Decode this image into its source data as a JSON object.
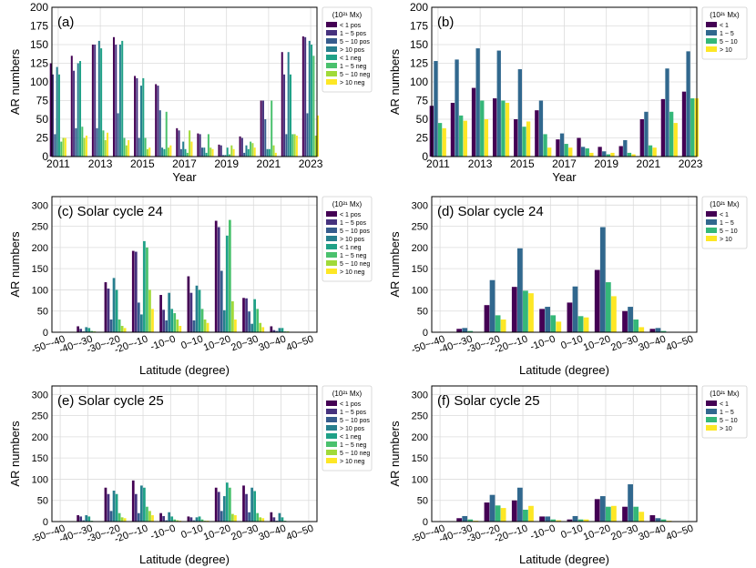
{
  "chart_data": [
    {
      "type": "bar",
      "panel_label": "(a)",
      "xlabel": "Year",
      "ylabel": "AR numbers",
      "ylim": [
        0,
        200
      ],
      "yticks": [
        0,
        25,
        50,
        75,
        100,
        125,
        150,
        175,
        200
      ],
      "categories": [
        "2011",
        "2012",
        "2013",
        "2014",
        "2015",
        "2016",
        "2017",
        "2018",
        "2019",
        "2020",
        "2021",
        "2022",
        "2023"
      ],
      "xtick_labels": [
        "2011",
        "2013",
        "2015",
        "2017",
        "2019",
        "2021",
        "2023"
      ],
      "legend_title": "(10²¹ Mx)",
      "series": [
        {
          "name": "< 1 pos",
          "color": "#440154",
          "values": [
            125,
            135,
            150,
            160,
            108,
            97,
            38,
            31,
            16,
            27,
            75,
            140,
            161
          ]
        },
        {
          "name": "1 ~ 5 pos",
          "color": "#46327e",
          "values": [
            110,
            115,
            150,
            150,
            105,
            95,
            35,
            30,
            15,
            25,
            75,
            110,
            160
          ]
        },
        {
          "name": "5 ~ 10 pos",
          "color": "#365c8d",
          "values": [
            30,
            38,
            38,
            58,
            25,
            62,
            10,
            12,
            2,
            5,
            50,
            30,
            58
          ]
        },
        {
          "name": "> 10 pos",
          "color": "#277f8e",
          "values": [
            120,
            125,
            155,
            150,
            95,
            12,
            20,
            12,
            2,
            15,
            10,
            140,
            155
          ]
        },
        {
          "name": "< 1 neg",
          "color": "#1fa187",
          "values": [
            110,
            128,
            145,
            155,
            105,
            10,
            10,
            5,
            12,
            10,
            10,
            110,
            150
          ]
        },
        {
          "name": "1 ~ 5 neg",
          "color": "#4ac16d",
          "values": [
            20,
            40,
            35,
            25,
            25,
            60,
            5,
            30,
            3,
            20,
            75,
            30,
            135
          ]
        },
        {
          "name": "5 ~ 10 neg",
          "color": "#a0da39",
          "values": [
            25,
            25,
            22,
            15,
            10,
            12,
            35,
            12,
            15,
            18,
            15,
            30,
            28
          ]
        },
        {
          "name": "> 10 neg",
          "color": "#fde725",
          "values": [
            25,
            28,
            32,
            22,
            12,
            15,
            20,
            10,
            10,
            12,
            5,
            28,
            55
          ]
        }
      ]
    },
    {
      "type": "bar",
      "panel_label": "(b)",
      "xlabel": "Year",
      "ylabel": "AR numbers",
      "ylim": [
        0,
        200
      ],
      "yticks": [
        0,
        25,
        50,
        75,
        100,
        125,
        150,
        175,
        200
      ],
      "categories": [
        "2011",
        "2012",
        "2013",
        "2014",
        "2015",
        "2016",
        "2017",
        "2018",
        "2019",
        "2020",
        "2021",
        "2022",
        "2023"
      ],
      "xtick_labels": [
        "2011",
        "2013",
        "2015",
        "2017",
        "2019",
        "2021",
        "2023"
      ],
      "legend_title": "(10²¹ Mx)",
      "series": [
        {
          "name": "< 1",
          "color": "#440154",
          "values": [
            68,
            72,
            92,
            78,
            50,
            62,
            23,
            25,
            13,
            14,
            50,
            77,
            87
          ]
        },
        {
          "name": "1 ~ 5",
          "color": "#31688e",
          "values": [
            128,
            130,
            145,
            142,
            117,
            75,
            31,
            13,
            7,
            22,
            60,
            118,
            141
          ]
        },
        {
          "name": "5 ~ 10",
          "color": "#35b779",
          "values": [
            45,
            55,
            75,
            75,
            40,
            30,
            17,
            11,
            3,
            5,
            15,
            60,
            78
          ]
        },
        {
          "name": "> 10",
          "color": "#fde725",
          "values": [
            38,
            48,
            50,
            72,
            47,
            12,
            12,
            5,
            5,
            3,
            12,
            45,
            78
          ]
        }
      ]
    },
    {
      "type": "bar",
      "panel_label": "(c) Solar cycle 24",
      "xlabel": "Latitude (degree)",
      "ylabel": "AR numbers",
      "ylim": [
        0,
        320
      ],
      "yticks": [
        0,
        50,
        100,
        150,
        200,
        250,
        300
      ],
      "categories": [
        "-50~-40",
        "-40~-30",
        "-30~-20",
        "-20~-10",
        "-10~0",
        "0~10",
        "10~20",
        "20~30",
        "30~40",
        "40~50"
      ],
      "xtick_labels": [
        "-50~-40",
        "-40~-30",
        "-30~-20",
        "-20~-10",
        "-10~0",
        "0~10",
        "10~20",
        "20~30",
        "30~40",
        "40~50"
      ],
      "legend_title": "(10²¹ Mx)",
      "series": [
        {
          "name": "< 1 pos",
          "color": "#440154",
          "values": [
            0,
            14,
            118,
            192,
            88,
            132,
            263,
            81,
            14,
            0
          ]
        },
        {
          "name": "1 ~ 5 pos",
          "color": "#46327e",
          "values": [
            0,
            8,
            103,
            190,
            53,
            93,
            248,
            80,
            5,
            0
          ]
        },
        {
          "name": "5 ~ 10 pos",
          "color": "#365c8d",
          "values": [
            0,
            2,
            30,
            70,
            28,
            28,
            145,
            49,
            3,
            0
          ]
        },
        {
          "name": "> 10 pos",
          "color": "#277f8e",
          "values": [
            0,
            12,
            128,
            42,
            93,
            110,
            52,
            20,
            10,
            0
          ]
        },
        {
          "name": "< 1 neg",
          "color": "#1fa187",
          "values": [
            0,
            10,
            100,
            215,
            55,
            100,
            228,
            78,
            10,
            0
          ]
        },
        {
          "name": "1 ~ 5 neg",
          "color": "#4ac16d",
          "values": [
            0,
            3,
            30,
            200,
            45,
            55,
            265,
            55,
            2,
            0
          ]
        },
        {
          "name": "5 ~ 10 neg",
          "color": "#a0da39",
          "values": [
            0,
            2,
            15,
            100,
            30,
            30,
            73,
            22,
            2,
            0
          ]
        },
        {
          "name": "> 10 neg",
          "color": "#fde725",
          "values": [
            0,
            1,
            10,
            55,
            15,
            22,
            30,
            12,
            1,
            0
          ]
        }
      ]
    },
    {
      "type": "bar",
      "panel_label": "(d) Solar cycle 24",
      "xlabel": "Latitude (degree)",
      "ylabel": "AR numbers",
      "ylim": [
        0,
        320
      ],
      "yticks": [
        0,
        50,
        100,
        150,
        200,
        250,
        300
      ],
      "categories": [
        "-50~-40",
        "-40~-30",
        "-30~-20",
        "-20~-10",
        "-10~0",
        "0~10",
        "10~20",
        "20~30",
        "30~40",
        "40~50"
      ],
      "xtick_labels": [
        "-50~-40",
        "-40~-30",
        "-30~-20",
        "-20~-10",
        "-10~0",
        "0~10",
        "10~20",
        "20~30",
        "30~40",
        "40~50"
      ],
      "legend_title": "(10²¹ Mx)",
      "series": [
        {
          "name": "< 1",
          "color": "#440154",
          "values": [
            0,
            8,
            64,
            107,
            55,
            70,
            147,
            50,
            8,
            0
          ]
        },
        {
          "name": "1 ~ 5",
          "color": "#31688e",
          "values": [
            0,
            10,
            123,
            198,
            60,
            108,
            248,
            60,
            10,
            0
          ]
        },
        {
          "name": "5 ~ 10",
          "color": "#35b779",
          "values": [
            0,
            3,
            40,
            98,
            40,
            38,
            118,
            30,
            3,
            0
          ]
        },
        {
          "name": "> 10",
          "color": "#fde725",
          "values": [
            0,
            1,
            30,
            92,
            25,
            35,
            85,
            12,
            1,
            0
          ]
        }
      ]
    },
    {
      "type": "bar",
      "panel_label": "(e) Solar cycle 25",
      "xlabel": "Latitude (degree)",
      "ylabel": "AR numbers",
      "ylim": [
        0,
        320
      ],
      "yticks": [
        0,
        50,
        100,
        150,
        200,
        250,
        300
      ],
      "categories": [
        "-50~-40",
        "-40~-30",
        "-30~-20",
        "-20~-10",
        "-10~0",
        "0~10",
        "10~20",
        "20~30",
        "30~40",
        "40~50"
      ],
      "xtick_labels": [
        "-50~-40",
        "-40~-30",
        "-30~-20",
        "-20~-10",
        "-10~0",
        "0~10",
        "10~20",
        "20~30",
        "30~40",
        "40~50"
      ],
      "legend_title": "(10²¹ Mx)",
      "series": [
        {
          "name": "< 1 pos",
          "color": "#440154",
          "values": [
            0,
            15,
            80,
            97,
            20,
            12,
            80,
            85,
            22,
            0
          ]
        },
        {
          "name": "1 ~ 5 pos",
          "color": "#46327e",
          "values": [
            0,
            12,
            65,
            65,
            13,
            10,
            70,
            65,
            10,
            0
          ]
        },
        {
          "name": "5 ~ 10 pos",
          "color": "#365c8d",
          "values": [
            0,
            3,
            25,
            20,
            3,
            3,
            25,
            22,
            2,
            0
          ]
        },
        {
          "name": "> 10 pos",
          "color": "#277f8e",
          "values": [
            0,
            15,
            73,
            85,
            22,
            10,
            60,
            80,
            20,
            0
          ]
        },
        {
          "name": "< 1 neg",
          "color": "#1fa187",
          "values": [
            0,
            12,
            65,
            80,
            12,
            12,
            92,
            72,
            10,
            0
          ]
        },
        {
          "name": "1 ~ 5 neg",
          "color": "#4ac16d",
          "values": [
            0,
            2,
            20,
            35,
            5,
            5,
            80,
            20,
            2,
            0
          ]
        },
        {
          "name": "5 ~ 10 neg",
          "color": "#a0da39",
          "values": [
            0,
            1,
            10,
            25,
            3,
            2,
            18,
            10,
            1,
            0
          ]
        },
        {
          "name": "> 10 neg",
          "color": "#fde725",
          "values": [
            0,
            1,
            8,
            15,
            2,
            2,
            15,
            8,
            1,
            0
          ]
        }
      ]
    },
    {
      "type": "bar",
      "panel_label": "(f) Solar cycle 25",
      "xlabel": "Latitude (degree)",
      "ylabel": "AR numbers",
      "ylim": [
        0,
        320
      ],
      "yticks": [
        0,
        50,
        100,
        150,
        200,
        250,
        300
      ],
      "categories": [
        "-50~-40",
        "-40~-30",
        "-30~-20",
        "-20~-10",
        "-10~0",
        "0~10",
        "10~20",
        "20~30",
        "30~40",
        "40~50"
      ],
      "xtick_labels": [
        "-50~-40",
        "-40~-30",
        "-30~-20",
        "-20~-10",
        "-10~0",
        "0~10",
        "10~20",
        "20~30",
        "30~40",
        "40~50"
      ],
      "legend_title": "(10²¹ Mx)",
      "series": [
        {
          "name": "< 1",
          "color": "#440154",
          "values": [
            0,
            8,
            45,
            50,
            12,
            5,
            53,
            35,
            15,
            0
          ]
        },
        {
          "name": "1 ~ 5",
          "color": "#31688e",
          "values": [
            0,
            13,
            63,
            80,
            12,
            13,
            60,
            88,
            8,
            0
          ]
        },
        {
          "name": "5 ~ 10",
          "color": "#35b779",
          "values": [
            0,
            5,
            38,
            28,
            5,
            5,
            35,
            35,
            5,
            0
          ]
        },
        {
          "name": "> 10",
          "color": "#fde725",
          "values": [
            0,
            2,
            32,
            37,
            3,
            5,
            37,
            23,
            2,
            0
          ]
        }
      ]
    }
  ]
}
